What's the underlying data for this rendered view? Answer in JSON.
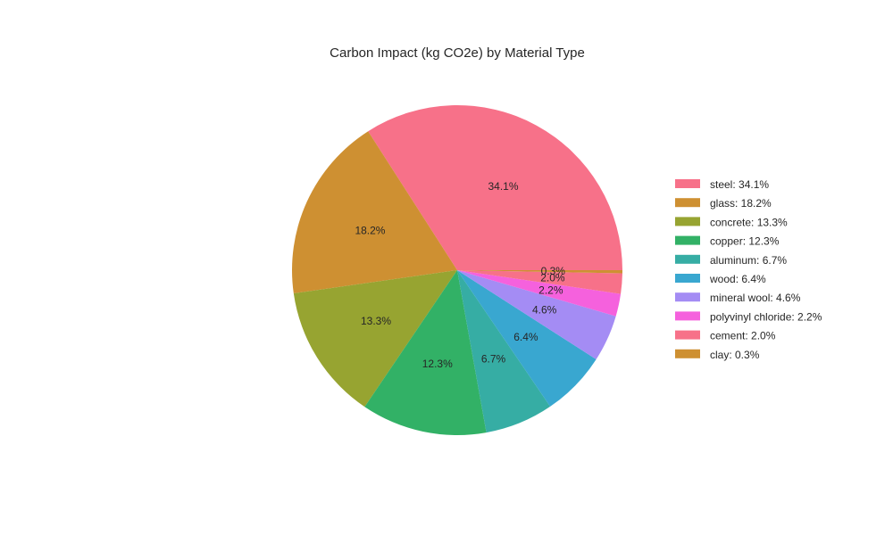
{
  "chart_data": {
    "type": "pie",
    "title": "Carbon Impact (kg CO2e) by Material Type",
    "categories": [
      "steel",
      "glass",
      "concrete",
      "copper",
      "aluminum",
      "wood",
      "mineral wool",
      "polyvinyl chloride",
      "cement",
      "clay"
    ],
    "values": [
      34.1,
      18.2,
      13.3,
      12.3,
      6.7,
      6.4,
      4.6,
      2.2,
      2.0,
      0.3
    ],
    "slice_labels": [
      "34.1%",
      "18.2%",
      "13.3%",
      "12.3%",
      "6.7%",
      "6.4%",
      "4.6%",
      "2.2%",
      "2.0%",
      "0.3%"
    ],
    "legend_entries": [
      "steel: 34.1%",
      "glass: 18.2%",
      "concrete: 13.3%",
      "copper: 12.3%",
      "aluminum: 6.7%",
      "wood: 6.4%",
      "mineral wool: 4.6%",
      "polyvinyl chloride: 2.2%",
      "cement: 2.0%",
      "clay: 0.3%"
    ],
    "colors": [
      "#f77189",
      "#ce9032",
      "#97a431",
      "#32b166",
      "#36ada4",
      "#39a7d0",
      "#a48cf4",
      "#f561dd",
      "#f77189",
      "#ce9032"
    ],
    "legend_position": "right",
    "start_angle": "3 o'clock, counter-clockwise"
  }
}
